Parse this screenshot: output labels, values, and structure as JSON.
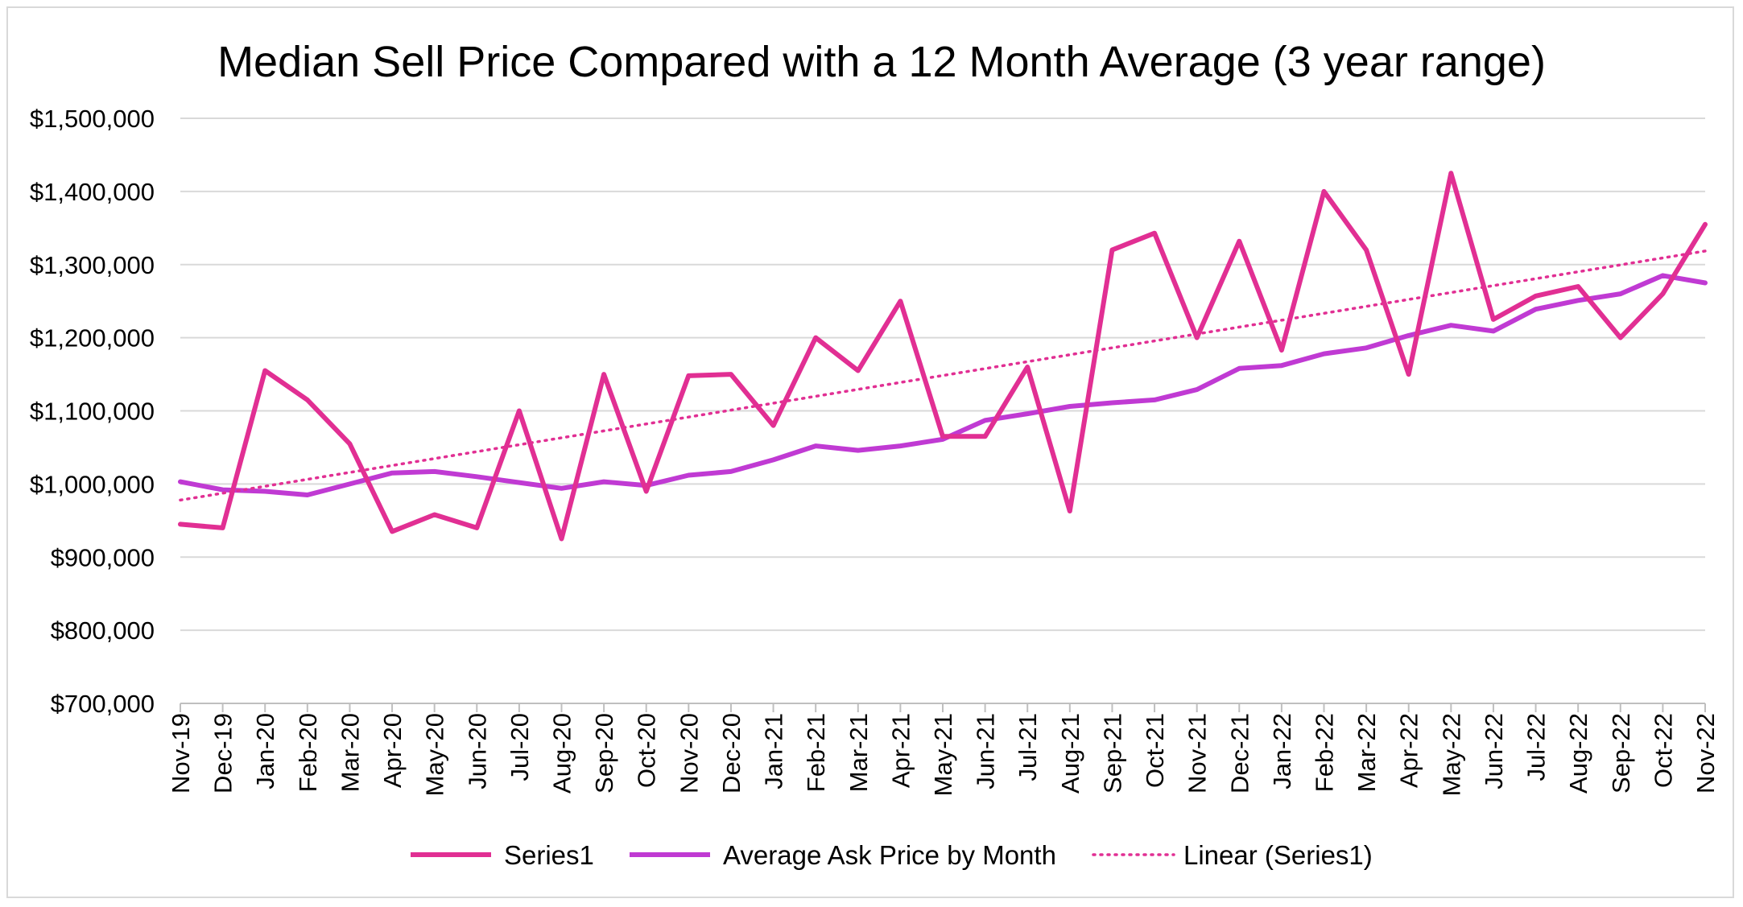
{
  "chart_data": {
    "type": "line",
    "title": "Median Sell Price Compared with a 12 Month Average (3 year range)",
    "xlabel": "",
    "ylabel": "",
    "ylim": [
      700000,
      1500000
    ],
    "ytick_step": 100000,
    "ytick_labels": [
      "$700,000",
      "$800,000",
      "$900,000",
      "$1,000,000",
      "$1,100,000",
      "$1,200,000",
      "$1,300,000",
      "$1,400,000",
      "$1,500,000"
    ],
    "grid": true,
    "legend_position": "bottom",
    "categories": [
      "Nov-19",
      "Dec-19",
      "Jan-20",
      "Feb-20",
      "Mar-20",
      "Apr-20",
      "May-20",
      "Jun-20",
      "Jul-20",
      "Aug-20",
      "Sep-20",
      "Oct-20",
      "Nov-20",
      "Dec-20",
      "Jan-21",
      "Feb-21",
      "Mar-21",
      "Apr-21",
      "May-21",
      "Jun-21",
      "Jul-21",
      "Aug-21",
      "Sep-21",
      "Oct-21",
      "Nov-21",
      "Dec-21",
      "Jan-22",
      "Feb-22",
      "Mar-22",
      "Apr-22",
      "May-22",
      "Jun-22",
      "Jul-22",
      "Aug-22",
      "Sep-22",
      "Oct-22",
      "Nov-22"
    ],
    "series": [
      {
        "name": "Series1",
        "color": "#e12f93",
        "style": "solid",
        "values": [
          945000,
          940000,
          1155000,
          1115000,
          1055000,
          935000,
          958000,
          940000,
          1100000,
          925000,
          1150000,
          990000,
          1148000,
          1150000,
          1080000,
          1200000,
          1155000,
          1250000,
          1065000,
          1065000,
          1160000,
          963000,
          1320000,
          1343000,
          1200000,
          1332000,
          1183000,
          1400000,
          1320000,
          1150000,
          1425000,
          1225000,
          1257000,
          1270000,
          1200000,
          1260000,
          1355000
        ]
      },
      {
        "name": "Average Ask Price by Month",
        "color": "#c03ad3",
        "style": "solid",
        "values": [
          1003000,
          992000,
          990000,
          985000,
          1000000,
          1015000,
          1017000,
          1010000,
          1002000,
          994000,
          1003000,
          998000,
          1012000,
          1017000,
          1033000,
          1052000,
          1046000,
          1052000,
          1061000,
          1087000,
          1096000,
          1106000,
          1111000,
          1115000,
          1129000,
          1158000,
          1162000,
          1178000,
          1186000,
          1203000,
          1217000,
          1209000,
          1239000,
          1251000,
          1260000,
          1285000,
          1275000
        ]
      },
      {
        "name": "Linear (Series1)",
        "color": "#e12f93",
        "style": "dotted",
        "values": [
          978000,
          987460,
          996920,
          1006380,
          1015840,
          1025300,
          1034760,
          1044220,
          1053680,
          1063140,
          1072600,
          1082060,
          1091520,
          1100980,
          1110440,
          1119900,
          1129360,
          1138820,
          1148280,
          1157740,
          1167200,
          1176660,
          1186120,
          1195580,
          1205040,
          1214500,
          1223960,
          1233420,
          1242880,
          1252340,
          1261800,
          1271260,
          1280720,
          1290180,
          1299640,
          1309100,
          1318560
        ]
      }
    ]
  }
}
